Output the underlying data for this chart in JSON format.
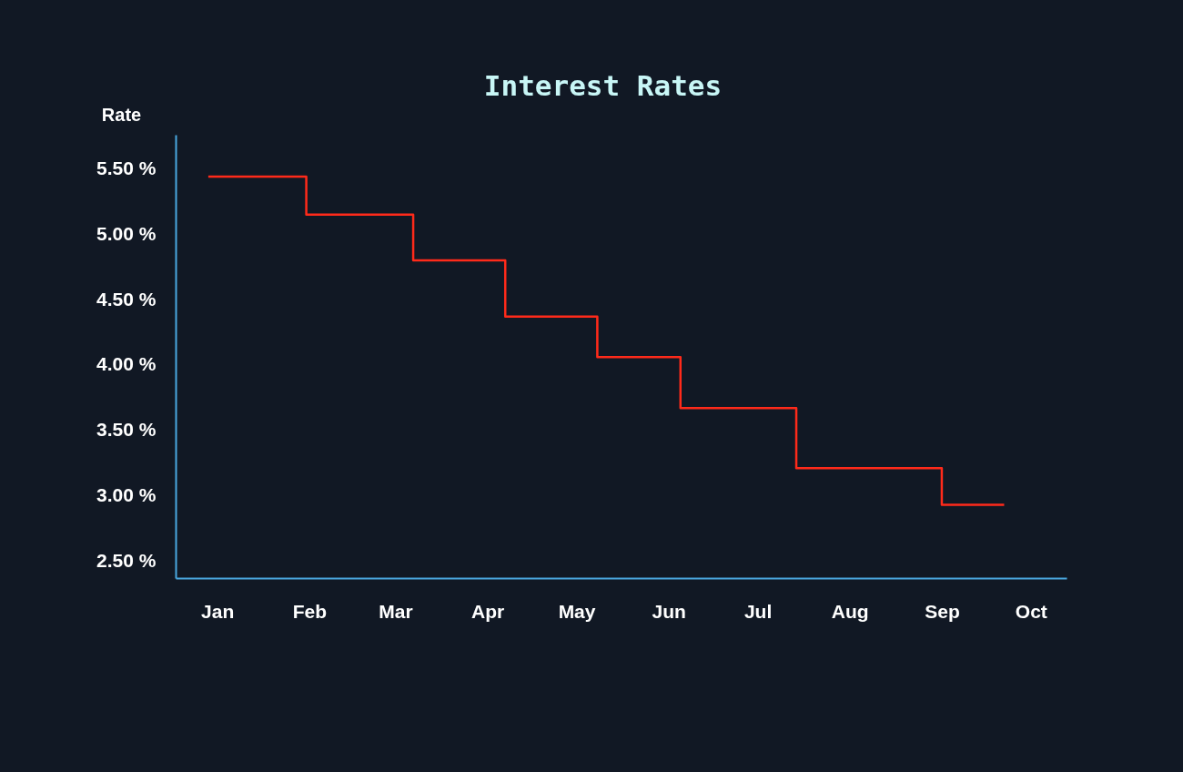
{
  "chart_data": {
    "type": "step",
    "title": "Interest Rates",
    "ylabel": "Rate",
    "x": [
      "--01-12",
      "--02-14",
      "--03-21",
      "--04-21",
      "--05-22",
      "--06-19",
      "--07-28",
      "--09-15",
      "--10-06"
    ],
    "series": [
      {
        "color": "#ff2a1a",
        "values": [
          5.44,
          5.15,
          4.8,
          4.37,
          4.06,
          3.67,
          3.21,
          2.93,
          2.93
        ]
      }
    ],
    "xlim": [
      "--01-01",
      "--10-27"
    ],
    "xticks": [
      {
        "value": "--01-15",
        "label": "Jan"
      },
      {
        "value": "--02-15",
        "label": "Feb"
      },
      {
        "value": "--03-15",
        "label": "Mar"
      },
      {
        "value": "--04-15",
        "label": "Apr"
      },
      {
        "value": "--05-15",
        "label": "May"
      },
      {
        "value": "--06-15",
        "label": "Jun"
      },
      {
        "value": "--07-15",
        "label": "Jul"
      },
      {
        "value": "--08-15",
        "label": "Aug"
      },
      {
        "value": "--09-15",
        "label": "Sep"
      },
      {
        "value": "--10-15",
        "label": "Oct"
      }
    ],
    "ylim": [
      2.37,
      5.76
    ],
    "yticks": [
      {
        "value": 2.5,
        "label": "2.50 %"
      },
      {
        "value": 3,
        "label": "3.00 %"
      },
      {
        "value": 3.5,
        "label": "3.50 %"
      },
      {
        "value": 4,
        "label": "4.00 %"
      },
      {
        "value": 4.5,
        "label": "4.50 %"
      },
      {
        "value": 5,
        "label": "5.00 %"
      },
      {
        "value": 5.5,
        "label": "5.50 %"
      }
    ],
    "grid": false
  }
}
